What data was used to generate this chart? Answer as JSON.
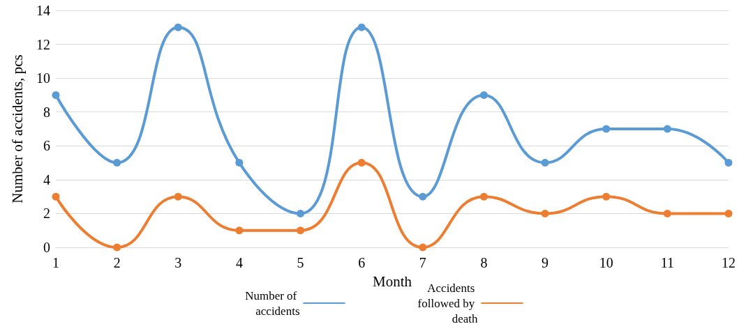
{
  "chart_data": {
    "type": "line",
    "xlabel": "Month",
    "ylabel": "Number of accidents, pcs",
    "categories": [
      "1",
      "2",
      "3",
      "4",
      "5",
      "6",
      "7",
      "8",
      "9",
      "10",
      "11",
      "12"
    ],
    "series": [
      {
        "name": "Number of accidents",
        "color": "#5b9bd5",
        "values": [
          9,
          5,
          13,
          5,
          2,
          13,
          3,
          9,
          5,
          7,
          7,
          5
        ]
      },
      {
        "name": "Accidents followed by death",
        "color": "#ed7d31",
        "values": [
          3,
          0,
          3,
          1,
          1,
          5,
          0,
          3,
          2,
          3,
          2,
          2
        ]
      }
    ],
    "ylim": [
      0,
      14
    ],
    "yticks": [
      0,
      2,
      4,
      6,
      8,
      10,
      12,
      14
    ],
    "grid": "y",
    "legend": "bottom",
    "marker": "circle",
    "line_style": "solid"
  }
}
